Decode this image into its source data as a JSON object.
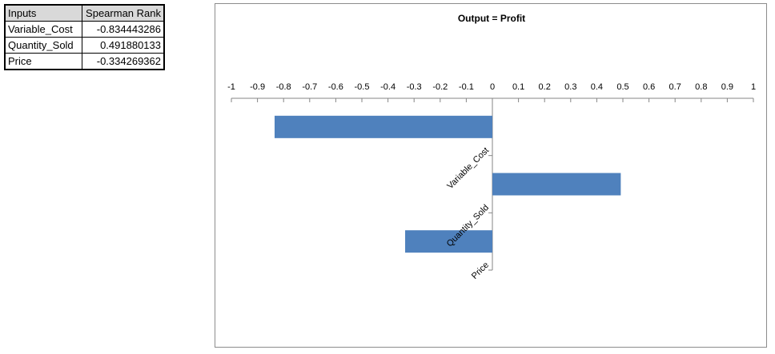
{
  "table": {
    "headers": [
      "Inputs",
      "Spearman Rank"
    ],
    "rows": [
      {
        "name": "Variable_Cost",
        "value": "-0.834443286"
      },
      {
        "name": "Quantity_Sold",
        "value": "0.491880133"
      },
      {
        "name": "Price",
        "value": "-0.334269362"
      }
    ]
  },
  "chart_data": {
    "type": "bar",
    "orientation": "horizontal",
    "title": "Output = Profit",
    "categories": [
      "Variable_Cost",
      "Quantity_Sold",
      "Price"
    ],
    "values": [
      -0.834443286,
      0.491880133,
      -0.334269362
    ],
    "xlim": [
      -1,
      1
    ],
    "ticks": [
      "-1",
      "-0.9",
      "-0.8",
      "-0.7",
      "-0.6",
      "-0.5",
      "-0.4",
      "-0.3",
      "-0.2",
      "-0.1",
      "0",
      "0.1",
      "0.2",
      "0.3",
      "0.4",
      "0.5",
      "0.6",
      "0.7",
      "0.8",
      "0.9",
      "1"
    ],
    "xaxis_position": "top",
    "grid": false,
    "legend": "none",
    "bar_color": "#4f81bd"
  }
}
